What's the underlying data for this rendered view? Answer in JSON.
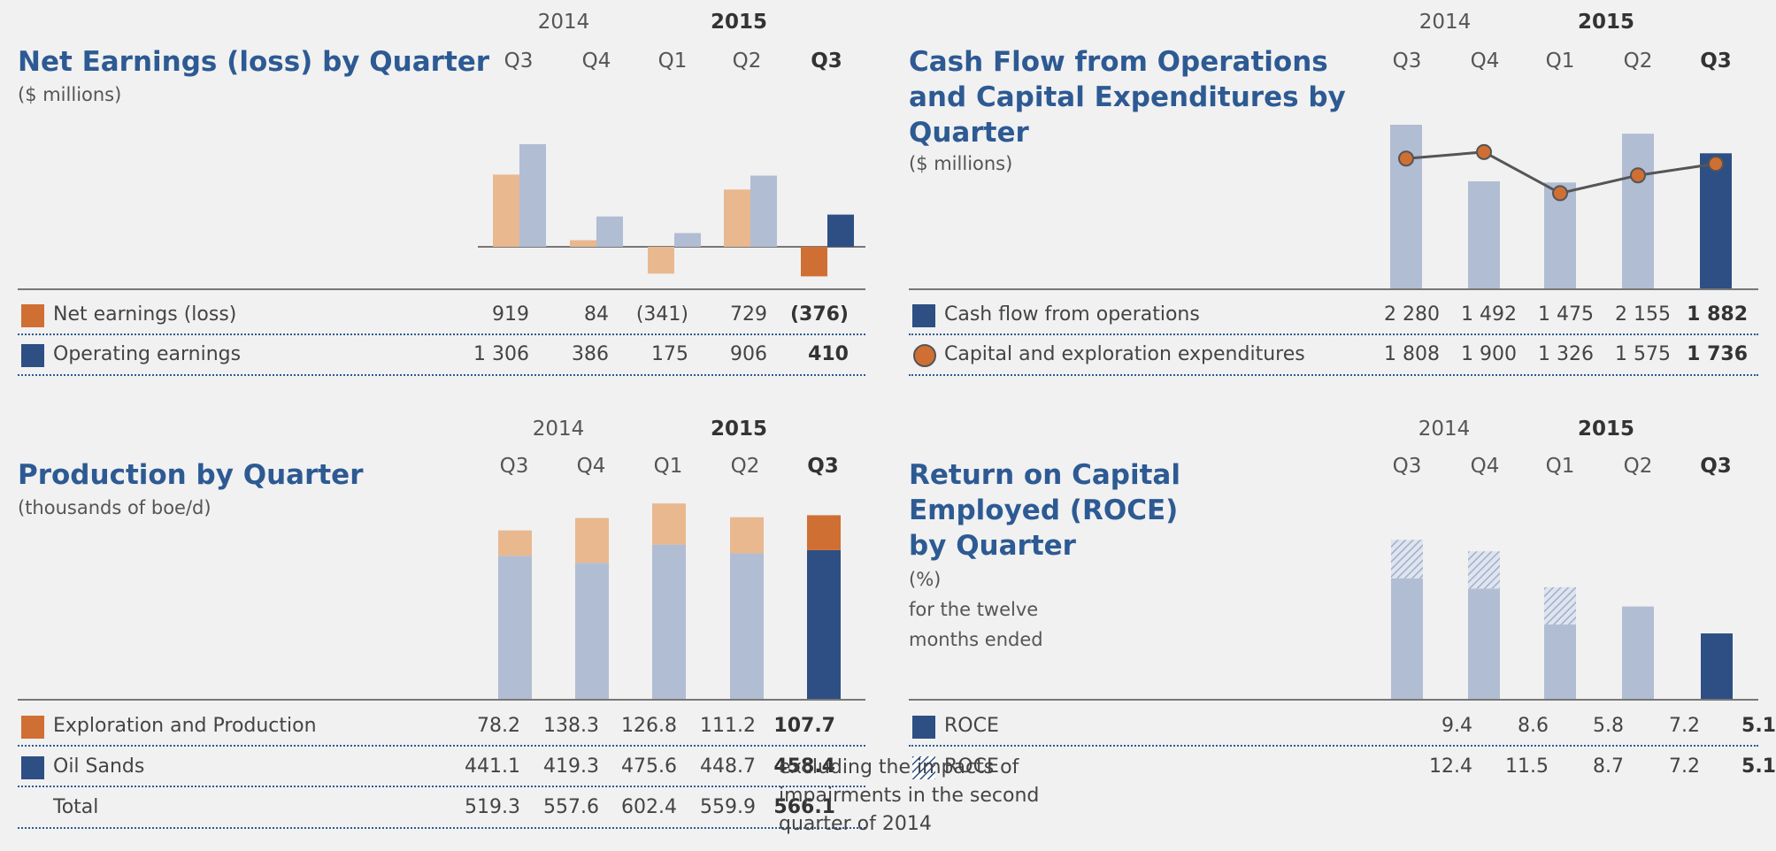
{
  "colors": {
    "title": "#2d5a93",
    "dark_blue": "#2d4f84",
    "light_blue": "#b1bdd3",
    "orange": "#d06f33",
    "light_orange": "#e9b88f",
    "line": "#555555"
  },
  "quarters": {
    "year_2014": "2014",
    "year_2015": "2015",
    "labels": [
      "Q3",
      "Q4",
      "Q1",
      "Q2",
      "Q3"
    ]
  },
  "chart_data": [
    {
      "id": "net_earnings",
      "type": "bar",
      "title": "Net Earnings (loss) by Quarter",
      "subtitle": "($ millions)",
      "categories": [
        "Q3 2014",
        "Q4 2014",
        "Q1 2015",
        "Q2 2015",
        "Q3 2015"
      ],
      "series": [
        {
          "name": "Net earnings (loss)",
          "values": [
            919,
            84,
            -341,
            729,
            -376
          ],
          "display": [
            "919",
            "84",
            "(341)",
            "729",
            "(376)"
          ]
        },
        {
          "name": "Operating earnings",
          "values": [
            1306,
            386,
            175,
            906,
            410
          ],
          "display": [
            "1 306",
            "386",
            "175",
            "906",
            "410"
          ]
        }
      ]
    },
    {
      "id": "cash_flow",
      "type": "bar",
      "title": "Cash Flow from Operations\nand Capital Expenditures by\nQuarter",
      "subtitle": "($ millions)",
      "categories": [
        "Q3 2014",
        "Q4 2014",
        "Q1 2015",
        "Q2 2015",
        "Q3 2015"
      ],
      "series": [
        {
          "name": "Cash flow from operations",
          "kind": "bar",
          "values": [
            2280,
            1492,
            1475,
            2155,
            1882
          ],
          "display": [
            "2 280",
            "1 492",
            "1 475",
            "2 155",
            "1 882"
          ]
        },
        {
          "name": "Capital and exploration expenditures",
          "kind": "line",
          "values": [
            1808,
            1900,
            1326,
            1575,
            1736
          ],
          "display": [
            "1 808",
            "1 900",
            "1 326",
            "1 575",
            "1 736"
          ]
        }
      ]
    },
    {
      "id": "production",
      "type": "bar",
      "stacked": true,
      "title": "Production by Quarter",
      "subtitle": "(thousands of boe/d)",
      "categories": [
        "Q3 2014",
        "Q4 2014",
        "Q1 2015",
        "Q2 2015",
        "Q3 2015"
      ],
      "series": [
        {
          "name": "Exploration and Production",
          "values": [
            78.2,
            138.3,
            126.8,
            111.2,
            107.7
          ],
          "display": [
            "78.2",
            "138.3",
            "126.8",
            "111.2",
            "107.7"
          ]
        },
        {
          "name": "Oil Sands",
          "values": [
            441.1,
            419.3,
            475.6,
            448.7,
            458.4
          ],
          "display": [
            "441.1",
            "419.3",
            "475.6",
            "448.7",
            "458.4"
          ]
        }
      ],
      "total": {
        "name": "Total",
        "values": [
          519.3,
          557.6,
          602.4,
          559.9,
          566.1
        ],
        "display": [
          "519.3",
          "557.6",
          "602.4",
          "559.9",
          "566.1"
        ]
      }
    },
    {
      "id": "roce",
      "type": "bar",
      "title": "Return on Capital\nEmployed (ROCE)\nby Quarter",
      "subtitle": "(%)\nfor the twelve\nmonths ended",
      "categories": [
        "Q3 2014",
        "Q4 2014",
        "Q1 2015",
        "Q2 2015",
        "Q3 2015"
      ],
      "series": [
        {
          "name": "ROCE",
          "values": [
            9.4,
            8.6,
            5.8,
            7.2,
            5.1
          ],
          "display": [
            "9.4",
            "8.6",
            "5.8",
            "7.2",
            "5.1"
          ]
        },
        {
          "name": "ROCE",
          "label_rest": "excluding the impacts of\nimpairments in the second\nquarter of 2014",
          "values": [
            12.4,
            11.5,
            8.7,
            7.2,
            5.1
          ],
          "display": [
            "12.4",
            "11.5",
            "8.7",
            "7.2",
            "5.1"
          ]
        }
      ]
    }
  ]
}
